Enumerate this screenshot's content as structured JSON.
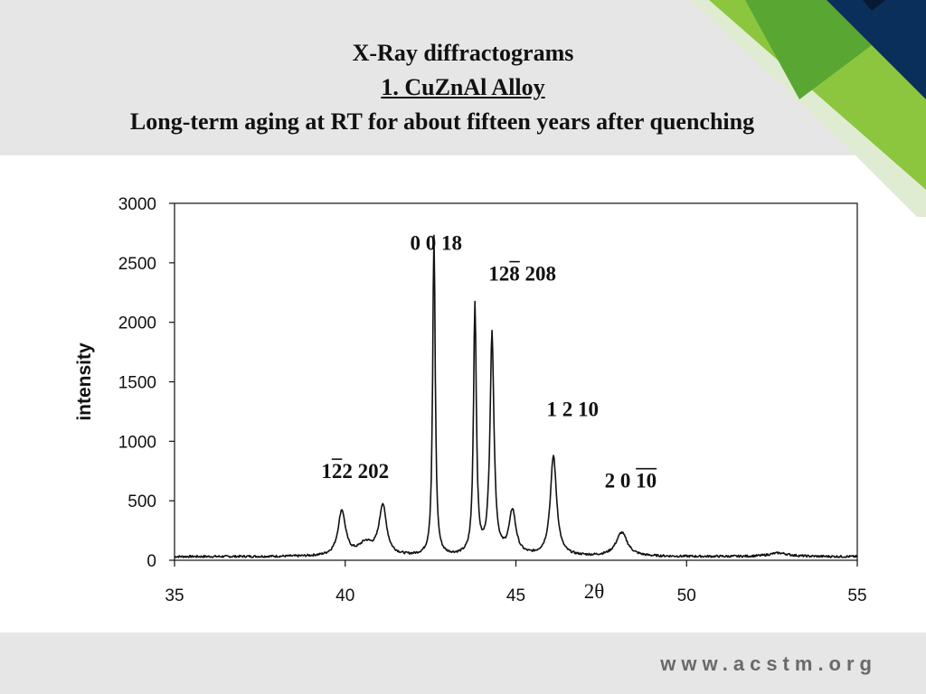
{
  "slide": {
    "title_line1": "X-Ray diffractograms",
    "title_line2": "1. CuZnAl Alloy",
    "title_line3": "Long-term aging at RT for about fifteen years after quenching",
    "footer_url": "www.acstm.org",
    "colors": {
      "band": "#e6e6e6",
      "green_light": "#8cc63f",
      "green_dark": "#4a9a2c",
      "navy": "#0b2f5b",
      "trace": "#111111"
    }
  },
  "chart_data": {
    "type": "line",
    "title": "",
    "xlabel": "2θ",
    "ylabel": "intensity",
    "xlim": [
      35,
      55
    ],
    "ylim": [
      0,
      3000
    ],
    "xticks": [
      35,
      40,
      45,
      50,
      55
    ],
    "yticks": [
      0,
      500,
      1000,
      1500,
      2000,
      2500,
      3000
    ],
    "grid": false,
    "baseline": 30,
    "peaks": [
      {
        "x": 39.9,
        "y": 380,
        "w": 0.13
      },
      {
        "x": 40.6,
        "y": 100,
        "w": 0.25
      },
      {
        "x": 41.1,
        "y": 420,
        "w": 0.13
      },
      {
        "x": 42.6,
        "y": 2680,
        "w": 0.045
      },
      {
        "x": 43.8,
        "y": 2100,
        "w": 0.05
      },
      {
        "x": 44.3,
        "y": 1850,
        "w": 0.07
      },
      {
        "x": 44.9,
        "y": 370,
        "w": 0.12
      },
      {
        "x": 46.1,
        "y": 840,
        "w": 0.11
      },
      {
        "x": 48.1,
        "y": 200,
        "w": 0.2
      },
      {
        "x": 52.7,
        "y": 30,
        "w": 0.35
      }
    ],
    "annotations": [
      {
        "text": "0 0 18",
        "x": 41.9,
        "y": 2610
      },
      {
        "text": "128 208",
        "x": 44.2,
        "y": 2350,
        "overbar": "8"
      },
      {
        "text": "1 2 10",
        "x": 45.9,
        "y": 1210
      },
      {
        "text": "122  202",
        "x": 39.3,
        "y": 690,
        "overbar": "2"
      },
      {
        "text": "2 0 10",
        "x": 47.6,
        "y": 610,
        "overbar": "10"
      }
    ]
  }
}
